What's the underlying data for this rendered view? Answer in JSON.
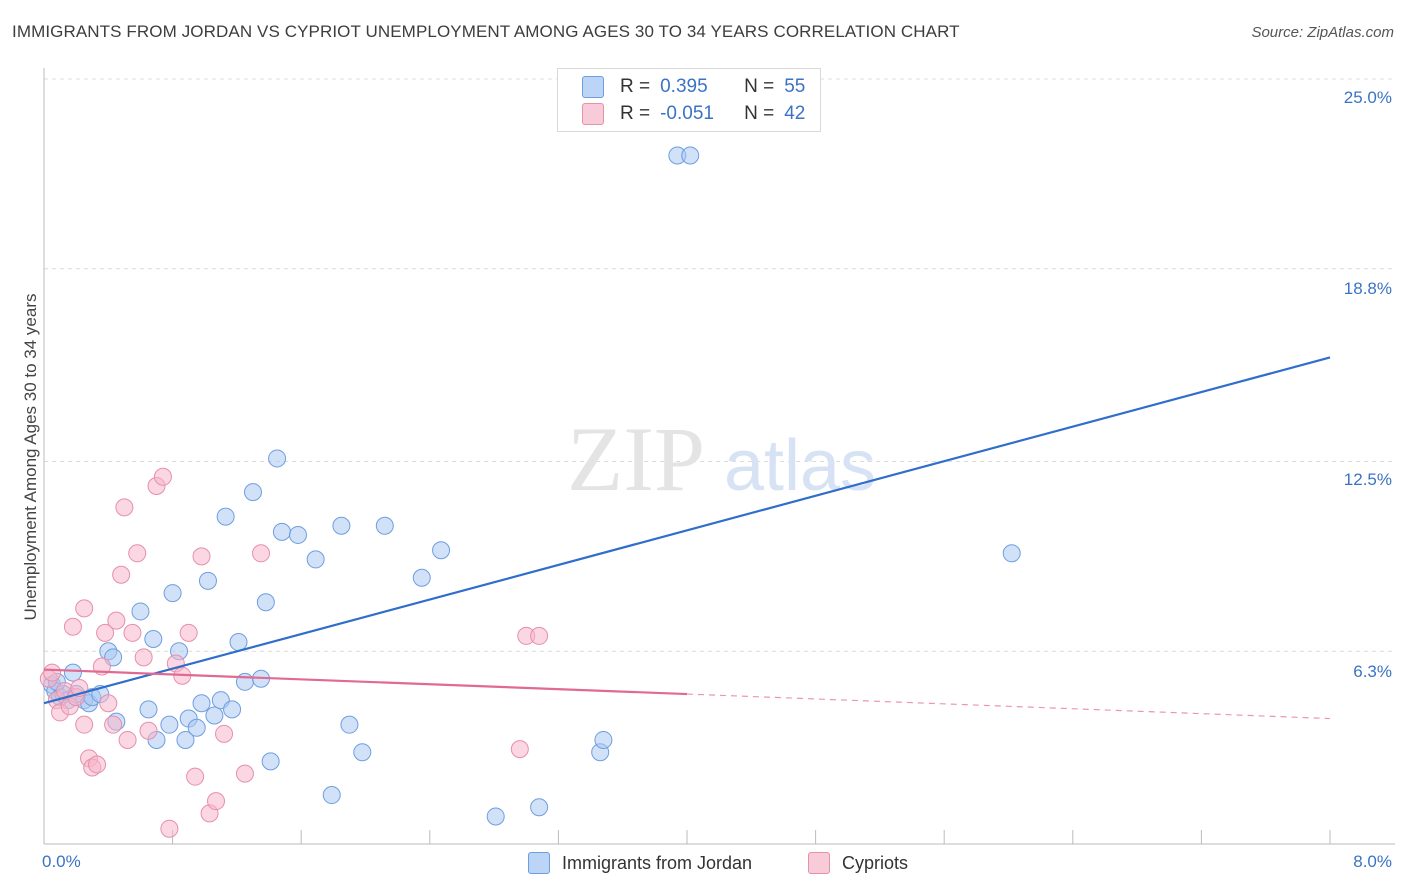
{
  "title": "IMMIGRANTS FROM JORDAN VS CYPRIOT UNEMPLOYMENT AMONG AGES 30 TO 34 YEARS CORRELATION CHART",
  "source": "Source: ZipAtlas.com",
  "watermark": {
    "zip": "ZIP",
    "atlas": "atlas"
  },
  "legend_stats": [
    {
      "r_label": "R =",
      "r_value": "0.395",
      "n_label": "N =",
      "n_value": "55",
      "color": "#a9c8f2"
    },
    {
      "r_label": "R =",
      "r_value": "-0.051",
      "n_label": "N =",
      "n_value": "42",
      "color": "#f5b7cb"
    }
  ],
  "colors": {
    "blue_fill": "#a9c8f2",
    "blue_stroke": "#6f9ee0",
    "blue_line": "#2f6ecb",
    "pink_fill": "#f5b7cb",
    "pink_stroke": "#e88fab",
    "pink_line": "#e06a93",
    "grid": "#dcdcdc"
  },
  "chart_data": {
    "type": "scatter",
    "title": "IMMIGRANTS FROM JORDAN VS CYPRIOT UNEMPLOYMENT AMONG AGES 30 TO 34 YEARS CORRELATION CHART",
    "xlabel": "",
    "ylabel": "Unemployment Among Ages 30 to 34 years",
    "xlim": [
      0,
      8.0
    ],
    "ylim": [
      0,
      25.0
    ],
    "x_tick_labels": [
      "0.0%",
      "8.0%"
    ],
    "y_ticks": [
      6.3,
      12.5,
      18.8,
      25.0
    ],
    "y_tick_labels": [
      "6.3%",
      "12.5%",
      "18.8%",
      "25.0%"
    ],
    "legend_position": "bottom",
    "series": [
      {
        "name": "Immigrants from Jordan",
        "color": "#a9c8f2",
        "trend": {
          "x": [
            0.0,
            8.0
          ],
          "y": [
            4.6,
            15.9
          ],
          "dashed_from": null
        },
        "points": [
          [
            0.05,
            5.2
          ],
          [
            0.07,
            5.0
          ],
          [
            0.1,
            4.8
          ],
          [
            0.12,
            4.9
          ],
          [
            0.15,
            4.7
          ],
          [
            0.18,
            5.6
          ],
          [
            0.25,
            4.7
          ],
          [
            0.28,
            4.6
          ],
          [
            0.3,
            4.8
          ],
          [
            0.35,
            4.9
          ],
          [
            0.4,
            6.3
          ],
          [
            0.43,
            6.1
          ],
          [
            0.45,
            4.0
          ],
          [
            0.6,
            7.6
          ],
          [
            0.65,
            4.4
          ],
          [
            0.68,
            6.7
          ],
          [
            0.7,
            3.4
          ],
          [
            0.78,
            3.9
          ],
          [
            0.8,
            8.2
          ],
          [
            0.84,
            6.3
          ],
          [
            0.88,
            3.4
          ],
          [
            0.9,
            4.1
          ],
          [
            0.95,
            3.8
          ],
          [
            0.98,
            4.6
          ],
          [
            1.02,
            8.6
          ],
          [
            1.06,
            4.2
          ],
          [
            1.1,
            4.7
          ],
          [
            1.13,
            10.7
          ],
          [
            1.17,
            4.4
          ],
          [
            1.21,
            6.6
          ],
          [
            1.25,
            5.3
          ],
          [
            1.3,
            11.5
          ],
          [
            1.35,
            5.4
          ],
          [
            1.38,
            7.9
          ],
          [
            1.41,
            2.7
          ],
          [
            1.45,
            12.6
          ],
          [
            1.48,
            10.2
          ],
          [
            1.58,
            10.1
          ],
          [
            1.69,
            9.3
          ],
          [
            1.79,
            1.6
          ],
          [
            1.85,
            10.4
          ],
          [
            1.9,
            3.9
          ],
          [
            1.98,
            3.0
          ],
          [
            2.12,
            10.4
          ],
          [
            2.35,
            8.7
          ],
          [
            2.47,
            9.6
          ],
          [
            2.81,
            0.9
          ],
          [
            3.08,
            1.2
          ],
          [
            3.46,
            3.0
          ],
          [
            3.48,
            3.4
          ],
          [
            3.94,
            22.5
          ],
          [
            4.02,
            22.5
          ],
          [
            6.02,
            9.5
          ],
          [
            0.08,
            5.3
          ],
          [
            0.2,
            4.9
          ]
        ]
      },
      {
        "name": "Cypriots",
        "color": "#f5b7cb",
        "trend": {
          "x": [
            0.0,
            8.0
          ],
          "y": [
            5.7,
            4.1
          ],
          "dashed_from": 4.0
        },
        "points": [
          [
            0.03,
            5.4
          ],
          [
            0.05,
            5.6
          ],
          [
            0.08,
            4.7
          ],
          [
            0.1,
            4.3
          ],
          [
            0.13,
            5.0
          ],
          [
            0.16,
            4.5
          ],
          [
            0.18,
            7.1
          ],
          [
            0.2,
            4.8
          ],
          [
            0.22,
            5.1
          ],
          [
            0.25,
            3.9
          ],
          [
            0.28,
            2.8
          ],
          [
            0.3,
            2.5
          ],
          [
            0.33,
            2.6
          ],
          [
            0.36,
            5.8
          ],
          [
            0.38,
            6.9
          ],
          [
            0.4,
            4.6
          ],
          [
            0.43,
            3.9
          ],
          [
            0.45,
            7.3
          ],
          [
            0.48,
            8.8
          ],
          [
            0.5,
            11.0
          ],
          [
            0.52,
            3.4
          ],
          [
            0.55,
            6.9
          ],
          [
            0.58,
            9.5
          ],
          [
            0.62,
            6.1
          ],
          [
            0.65,
            3.7
          ],
          [
            0.7,
            11.7
          ],
          [
            0.74,
            12.0
          ],
          [
            0.78,
            0.5
          ],
          [
            0.82,
            5.9
          ],
          [
            0.86,
            5.5
          ],
          [
            0.9,
            6.9
          ],
          [
            0.94,
            2.2
          ],
          [
            0.98,
            9.4
          ],
          [
            1.03,
            1.0
          ],
          [
            1.07,
            1.4
          ],
          [
            1.12,
            3.6
          ],
          [
            1.25,
            2.3
          ],
          [
            1.35,
            9.5
          ],
          [
            2.96,
            3.1
          ],
          [
            3.0,
            6.8
          ],
          [
            3.08,
            6.8
          ],
          [
            0.25,
            7.7
          ]
        ]
      }
    ]
  },
  "bottom_legend": [
    {
      "label": "Immigrants from Jordan",
      "color": "#a9c8f2"
    },
    {
      "label": "Cypriots",
      "color": "#f5b7cb"
    }
  ]
}
